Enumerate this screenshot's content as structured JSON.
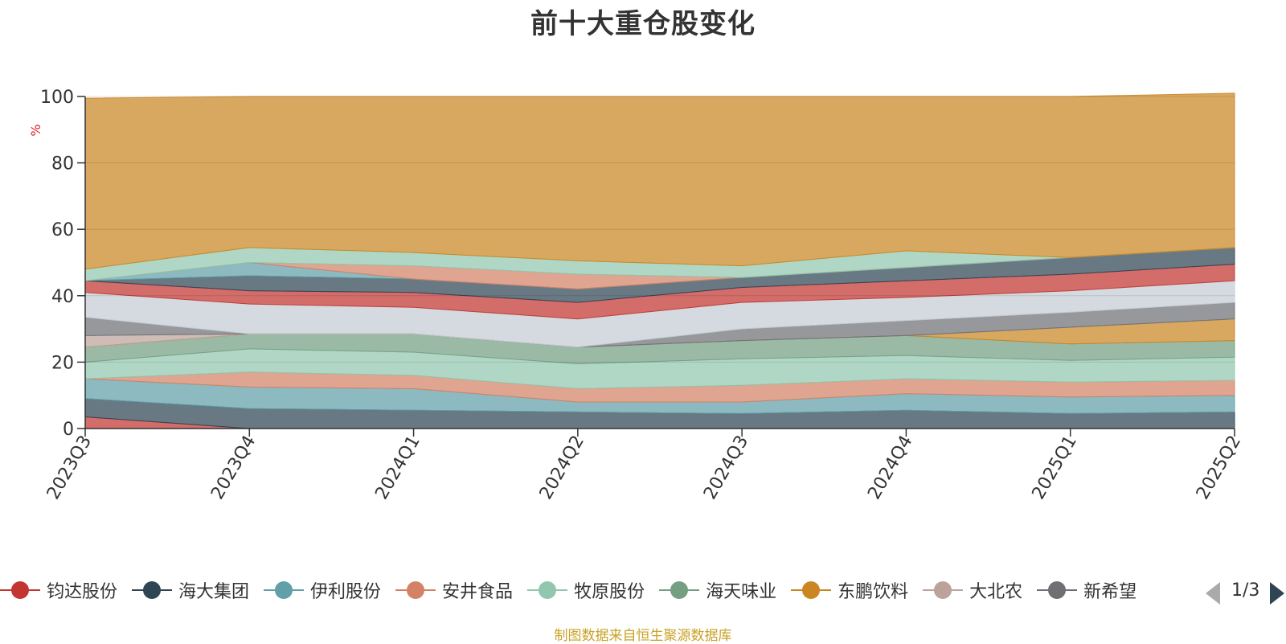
{
  "chart_data": {
    "type": "area",
    "stacked": true,
    "title": "前十大重仓股变化",
    "ylabel": "%",
    "ylim": [
      0,
      100
    ],
    "yticks": [
      0,
      20,
      40,
      60,
      80,
      100
    ],
    "grid": true,
    "categories": [
      "2023Q3",
      "2023Q4",
      "2024Q1",
      "2024Q2",
      "2024Q3",
      "2024Q4",
      "2025Q1",
      "2025Q2"
    ],
    "series": [
      {
        "name": "钧达股份",
        "color": "#c23531",
        "values": [
          3.5,
          0,
          0,
          0,
          0,
          0,
          0,
          0
        ]
      },
      {
        "name": "海大集团",
        "color": "#2f4554",
        "values": [
          5.5,
          6,
          5.5,
          5,
          4.5,
          5.5,
          4.5,
          5
        ]
      },
      {
        "name": "伊利股份",
        "color": "#61a0a8",
        "values": [
          6,
          6.5,
          6.5,
          3,
          3.5,
          5,
          5,
          5
        ]
      },
      {
        "name": "安井食品",
        "color": "#d48265",
        "values": [
          0,
          4.5,
          4,
          4,
          5,
          4.5,
          4.5,
          4.5
        ]
      },
      {
        "name": "牧原股份",
        "color": "#91c7ae",
        "values": [
          5,
          7,
          7,
          7.5,
          8,
          7,
          6.5,
          7
        ]
      },
      {
        "name": "海天味业",
        "color": "#749f83",
        "values": [
          4.5,
          4.5,
          5.5,
          5,
          5.5,
          6,
          5,
          5
        ]
      },
      {
        "name": "东鹏饮料",
        "color": "#ca8622",
        "values": [
          0,
          0,
          0,
          0,
          0,
          0,
          5,
          6.5
        ]
      },
      {
        "name": "大北农",
        "color": "#bda29a",
        "values": [
          3.5,
          0,
          0,
          0,
          0,
          0,
          0,
          0
        ]
      },
      {
        "name": "新希望",
        "color": "#6e7074",
        "values": [
          5.5,
          0,
          0,
          0,
          3.5,
          4.5,
          4.5,
          5
        ]
      },
      {
        "name": "",
        "color": "#c4ccd3",
        "values": [
          7.5,
          9,
          8,
          8.5,
          8,
          7,
          6.5,
          6.5
        ]
      },
      {
        "name": "",
        "color": "#c23531",
        "values": [
          3.5,
          4,
          4.5,
          5,
          4.5,
          5,
          5,
          5
        ]
      },
      {
        "name": "",
        "color": "#2f4554",
        "values": [
          0,
          4.5,
          4,
          4,
          3,
          4,
          5,
          5
        ]
      },
      {
        "name": "",
        "color": "#61a0a8",
        "values": [
          0,
          4,
          0,
          0,
          0,
          0,
          0,
          0
        ]
      },
      {
        "name": "",
        "color": "#d48265",
        "values": [
          0,
          0,
          4,
          4.5,
          0,
          0,
          0,
          0
        ]
      },
      {
        "name": "",
        "color": "#91c7ae",
        "values": [
          3.5,
          4.5,
          4,
          4,
          3.5,
          5,
          0,
          0
        ]
      },
      {
        "name": "",
        "color": "#ca8622",
        "values": [
          51.5,
          45.5,
          47,
          49.5,
          51,
          46.5,
          48.5,
          46.5
        ]
      }
    ]
  },
  "legend": {
    "items": [
      {
        "label": "钧达股份",
        "color": "#c23531"
      },
      {
        "label": "海大集团",
        "color": "#2f4554"
      },
      {
        "label": "伊利股份",
        "color": "#61a0a8"
      },
      {
        "label": "安井食品",
        "color": "#d48265"
      },
      {
        "label": "牧原股份",
        "color": "#91c7ae"
      },
      {
        "label": "海天味业",
        "color": "#749f83"
      },
      {
        "label": "东鹏饮料",
        "color": "#ca8622"
      },
      {
        "label": "大北农",
        "color": "#bda29a"
      },
      {
        "label": "新希望",
        "color": "#6e7074"
      }
    ],
    "page": "1/3"
  },
  "source": "制图数据来自恒生聚源数据库"
}
